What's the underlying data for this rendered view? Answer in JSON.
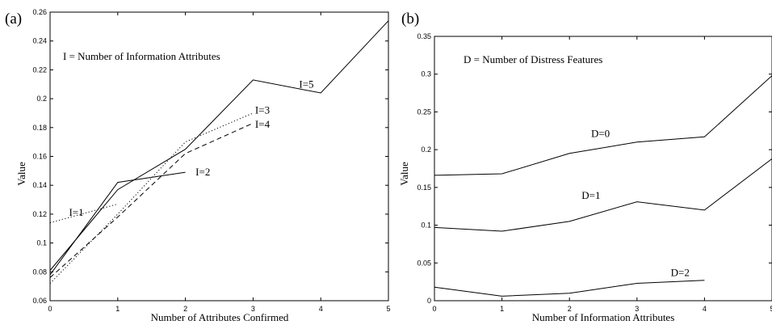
{
  "chart_data": [
    {
      "type": "line",
      "panel_label": "(a)",
      "annotation": "I = Number of Information Attributes",
      "xlabel": "Number of Attributes Confirmed",
      "ylabel": "Value",
      "xlim": [
        0,
        5
      ],
      "ylim": [
        0.06,
        0.26
      ],
      "xticks": [
        0,
        1,
        2,
        3,
        4,
        5
      ],
      "yticks": [
        0.06,
        0.08,
        0.1,
        0.12,
        0.14,
        0.16,
        0.18,
        0.2,
        0.22,
        0.24,
        0.26
      ],
      "grid": false,
      "series": [
        {
          "name": "I=1",
          "style": "dotted",
          "x": [
            0,
            1
          ],
          "y": [
            0.114,
            0.127
          ],
          "label_at": [
            0.28,
            0.121
          ]
        },
        {
          "name": "I=2",
          "style": "solid",
          "x": [
            0,
            1,
            2
          ],
          "y": [
            0.078,
            0.142,
            0.149
          ],
          "label_at": [
            2.15,
            0.149
          ]
        },
        {
          "name": "I=3",
          "style": "dotted",
          "x": [
            0,
            1,
            2,
            3
          ],
          "y": [
            0.072,
            0.12,
            0.17,
            0.19
          ],
          "label_at": [
            3.03,
            0.192
          ]
        },
        {
          "name": "I=4",
          "style": "dashed",
          "x": [
            0,
            1,
            2,
            3
          ],
          "y": [
            0.076,
            0.118,
            0.162,
            0.183
          ],
          "label_at": [
            3.03,
            0.182
          ]
        },
        {
          "name": "I=5",
          "style": "solid",
          "x": [
            0,
            1,
            2,
            3,
            4,
            5
          ],
          "y": [
            0.081,
            0.137,
            0.165,
            0.213,
            0.204,
            0.254
          ],
          "label_at": [
            3.68,
            0.21
          ]
        }
      ]
    },
    {
      "type": "line",
      "panel_label": "(b)",
      "annotation": "D = Number of Distress Features",
      "xlabel": "Number of Information Attributes",
      "ylabel": "Value",
      "xlim": [
        0,
        5
      ],
      "ylim": [
        0,
        0.35
      ],
      "xticks": [
        0,
        1,
        2,
        3,
        4,
        5
      ],
      "yticks": [
        0,
        0.05,
        0.1,
        0.15,
        0.2,
        0.25,
        0.3,
        0.35
      ],
      "grid": false,
      "series": [
        {
          "name": "D=0",
          "style": "solid",
          "x": [
            0,
            1,
            2,
            3,
            4,
            5
          ],
          "y": [
            0.166,
            0.168,
            0.195,
            0.21,
            0.217,
            0.298
          ],
          "label_at": [
            2.32,
            0.221
          ]
        },
        {
          "name": "D=1",
          "style": "solid",
          "x": [
            0,
            1,
            2,
            3,
            4,
            5
          ],
          "y": [
            0.097,
            0.092,
            0.105,
            0.131,
            0.12,
            0.188
          ],
          "label_at": [
            2.18,
            0.139
          ]
        },
        {
          "name": "D=2",
          "style": "solid",
          "x": [
            0,
            1,
            2,
            3,
            4
          ],
          "y": [
            0.018,
            0.006,
            0.01,
            0.023,
            0.027
          ],
          "label_at": [
            3.5,
            0.037
          ]
        }
      ]
    }
  ]
}
